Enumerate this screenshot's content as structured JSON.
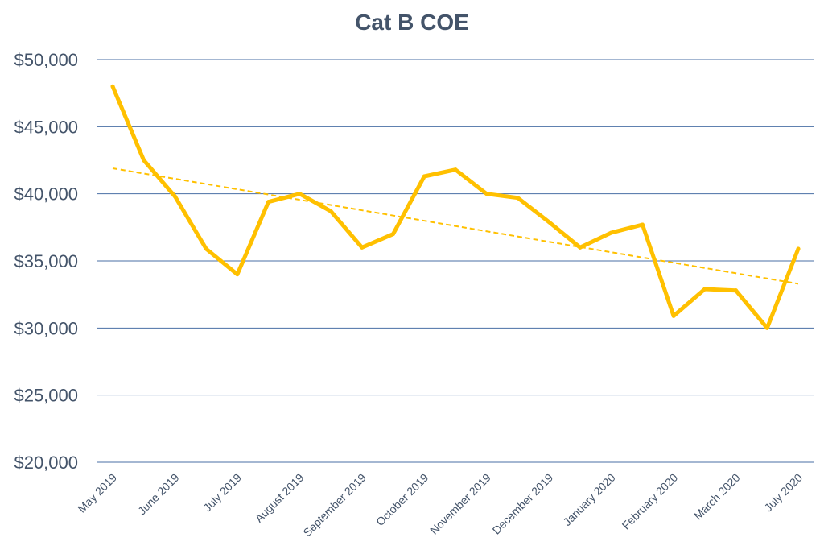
{
  "chart_data": {
    "type": "line",
    "title": "Cat B COE",
    "xlabel": "",
    "ylabel": "",
    "ylim": [
      20000,
      50000
    ],
    "y_ticks": [
      "$20,000",
      "$25,000",
      "$30,000",
      "$35,000",
      "$40,000",
      "$45,000",
      "$50,000"
    ],
    "y_tick_values": [
      20000,
      25000,
      30000,
      35000,
      40000,
      45000,
      50000
    ],
    "x_tick_labels": [
      "May 2019",
      "June 2019",
      "July 2019",
      "August 2019",
      "September 2019",
      "October 2019",
      "November 2019",
      "December 2019",
      "January 2020",
      "February 2020",
      "March 2020",
      "July 2020"
    ],
    "grid": true,
    "legend": "none",
    "colors": {
      "line": "#ffc000",
      "trend": "#ffc000",
      "grid": "#4a6fa5",
      "text": "#44546a"
    },
    "series": [
      {
        "values": [
          48000,
          42500,
          39800,
          35900,
          34000,
          39400,
          40000,
          38700,
          36000,
          37000,
          41300,
          41800,
          40000,
          39700,
          37900,
          36000,
          37100,
          37700,
          30900,
          32900,
          32800,
          30000,
          35900
        ]
      }
    ],
    "trendline": {
      "type": "linear",
      "start": 41900,
      "end": 33300
    }
  }
}
